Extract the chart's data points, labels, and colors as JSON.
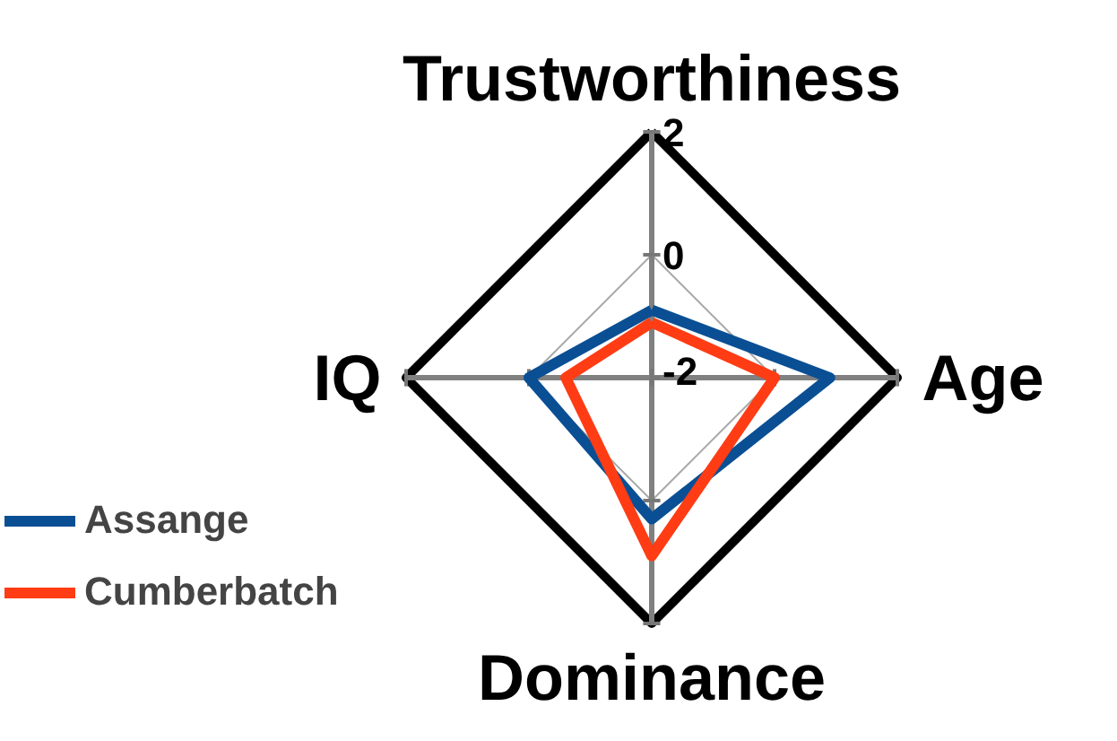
{
  "chart_data": {
    "type": "radar",
    "categories": [
      "Trustworthiness",
      "Age",
      "Dominance",
      "IQ"
    ],
    "series": [
      {
        "name": "Assange",
        "color": "#0a4f94",
        "values": [
          -0.9,
          0.9,
          0.3,
          0.0
        ]
      },
      {
        "name": "Cumberbatch",
        "color": "#ff3c14",
        "values": [
          -1.1,
          0.0,
          0.9,
          -0.6
        ]
      }
    ],
    "ylim": [
      -2,
      2
    ],
    "yticks": [
      -2,
      0,
      2
    ],
    "grid": true,
    "legend": "left"
  }
}
